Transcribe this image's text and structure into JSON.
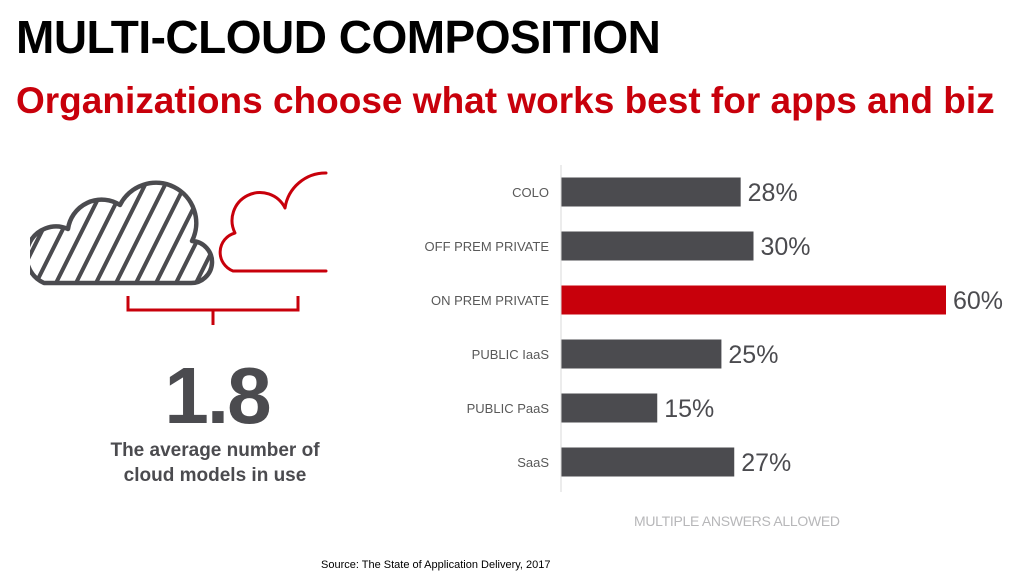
{
  "header": {
    "title": "MULTI-CLOUD COMPOSITION",
    "subtitle": "Organizations choose what works best for apps and biz"
  },
  "stat": {
    "value": "1.8",
    "caption_line1": "The average number of",
    "caption_line2": "cloud models in use"
  },
  "colors": {
    "accent": "#c8000b",
    "bar": "#4b4b4f",
    "text_dark": "#4b4b4f",
    "label": "#595959",
    "note": "#b7b7b9",
    "axis": "#d9d9d9"
  },
  "icons": {
    "hatched_cloud": "cloud-outline-hatched-icon",
    "red_cloud": "cloud-outline-red-icon",
    "bracket": "bracket-icon"
  },
  "chart_data": {
    "type": "bar",
    "orientation": "horizontal",
    "categories": [
      "COLO",
      "OFF PREM PRIVATE",
      "ON PREM PRIVATE",
      "PUBLIC IaaS",
      "PUBLIC PaaS",
      "SaaS"
    ],
    "values": [
      28,
      30,
      60,
      25,
      15,
      27
    ],
    "data_labels": [
      "28%",
      "30%",
      "60%",
      "25%",
      "15%",
      "27%"
    ],
    "highlight_index": 2,
    "unit": "%",
    "xlim": [
      0,
      60
    ],
    "grid": false,
    "legend": "none",
    "note": "MULTIPLE ANSWERS ALLOWED"
  },
  "footer": {
    "source": "Source: The State of Application Delivery, 2017"
  }
}
